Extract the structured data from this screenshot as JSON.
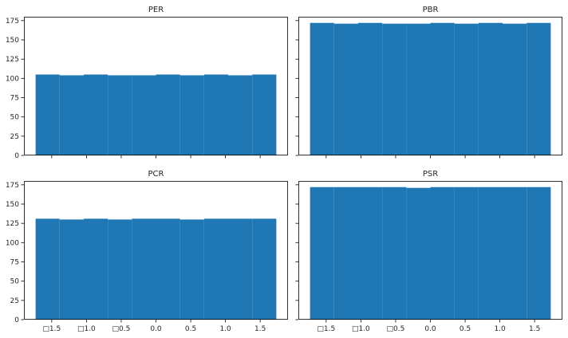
{
  "chart_data": [
    {
      "type": "bar",
      "title": "PER",
      "xlabel": "",
      "ylabel": "",
      "xlim": [
        -1.9,
        1.9
      ],
      "ylim": [
        0,
        180
      ],
      "grid": false,
      "bin_edges": [
        -1.732,
        -1.386,
        -1.039,
        -0.693,
        -0.346,
        0.0,
        0.346,
        0.693,
        1.039,
        1.386,
        1.732
      ],
      "values": [
        105,
        104,
        105,
        104,
        104,
        105,
        104,
        105,
        104,
        105
      ],
      "color": "#1f77b4",
      "yticks": [
        "0",
        "25",
        "50",
        "75",
        "100",
        "125",
        "150",
        "175"
      ],
      "xticks": [],
      "show_y_tick_labels": true,
      "show_x_tick_labels": false
    },
    {
      "type": "bar",
      "title": "PBR",
      "xlabel": "",
      "ylabel": "",
      "xlim": [
        -1.9,
        1.9
      ],
      "ylim": [
        0,
        180
      ],
      "grid": false,
      "bin_edges": [
        -1.732,
        -1.386,
        -1.039,
        -0.693,
        -0.346,
        0.0,
        0.346,
        0.693,
        1.039,
        1.386,
        1.732
      ],
      "values": [
        172,
        171,
        172,
        171,
        171,
        172,
        171,
        172,
        171,
        172
      ],
      "color": "#1f77b4",
      "yticks": [],
      "xticks": [],
      "show_y_tick_labels": false,
      "show_x_tick_labels": false
    },
    {
      "type": "bar",
      "title": "PCR",
      "xlabel": "",
      "ylabel": "",
      "xlim": [
        -1.9,
        1.9
      ],
      "ylim": [
        0,
        180
      ],
      "grid": false,
      "bin_edges": [
        -1.732,
        -1.386,
        -1.039,
        -0.693,
        -0.346,
        0.0,
        0.346,
        0.693,
        1.039,
        1.386,
        1.732
      ],
      "values": [
        131,
        130,
        131,
        130,
        131,
        131,
        130,
        131,
        131,
        131
      ],
      "color": "#1f77b4",
      "yticks": [
        "0",
        "25",
        "50",
        "75",
        "100",
        "125",
        "150",
        "175"
      ],
      "xticks": [
        "□1.5",
        "□1.0",
        "□0.5",
        "0.0",
        "0.5",
        "1.0",
        "1.5"
      ],
      "show_y_tick_labels": true,
      "show_x_tick_labels": true
    },
    {
      "type": "bar",
      "title": "PSR",
      "xlabel": "",
      "ylabel": "",
      "xlim": [
        -1.9,
        1.9
      ],
      "ylim": [
        0,
        180
      ],
      "grid": false,
      "bin_edges": [
        -1.732,
        -1.386,
        -1.039,
        -0.693,
        -0.346,
        0.0,
        0.346,
        0.693,
        1.039,
        1.386,
        1.732
      ],
      "values": [
        172,
        172,
        172,
        172,
        171,
        172,
        172,
        172,
        172,
        172
      ],
      "color": "#1f77b4",
      "yticks": [],
      "xticks": [
        "□1.5",
        "□1.0",
        "□0.5",
        "0.0",
        "0.5",
        "1.0",
        "1.5"
      ],
      "show_y_tick_labels": false,
      "show_x_tick_labels": true
    }
  ]
}
